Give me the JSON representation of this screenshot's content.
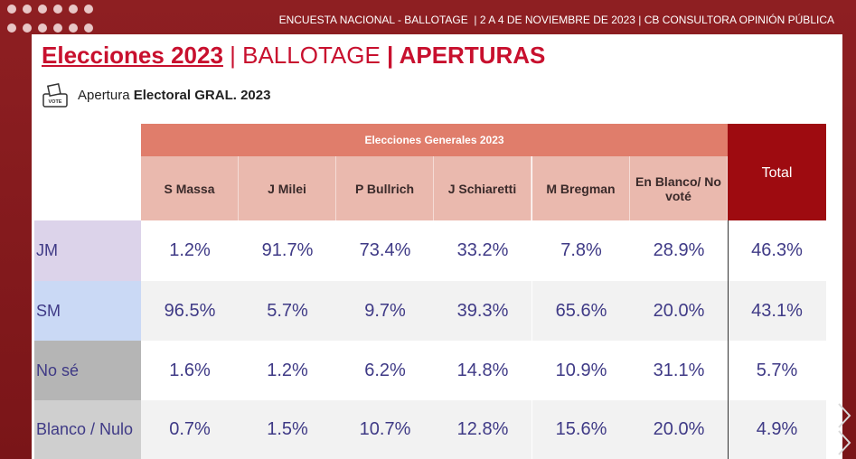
{
  "header": {
    "bar_text": "ENCUESTA NACIONAL - BALLOTAGE  | 2 A 4 DE NOVIEMBRE DE 2023 | CB CONSULTORA OPINIÓN PÚBLICA"
  },
  "title": {
    "part1": "Elecciones 2023",
    "part2": " | BALLOTAGE ",
    "part3": "| APERTURAS"
  },
  "subtitle": {
    "icon_text": "VOTE",
    "normal": "Apertura ",
    "bold": "Electoral GRAL. 2023"
  },
  "table": {
    "group": "Elecciones Generales 2023",
    "columns": [
      "S Massa",
      "J Milei",
      "P Bullrich",
      "J Schiaretti",
      "M Bregman",
      "En Blanco/ No voté"
    ],
    "total": "Total",
    "rows": [
      {
        "label": "JM",
        "cells": [
          "1.2%",
          "91.7%",
          "73.4%",
          "33.2%",
          "7.8%",
          "28.9%",
          "46.3%"
        ]
      },
      {
        "label": "SM",
        "cells": [
          "96.5%",
          "5.7%",
          "9.7%",
          "39.3%",
          "65.6%",
          "20.0%",
          "43.1%"
        ]
      },
      {
        "label": "No sé",
        "cells": [
          "1.6%",
          "1.2%",
          "6.2%",
          "14.8%",
          "10.9%",
          "31.1%",
          "5.7%"
        ]
      },
      {
        "label": "Blanco / Nulo",
        "cells": [
          "0.7%",
          "1.5%",
          "10.7%",
          "12.8%",
          "15.6%",
          "20.0%",
          "4.9%"
        ]
      }
    ]
  }
}
